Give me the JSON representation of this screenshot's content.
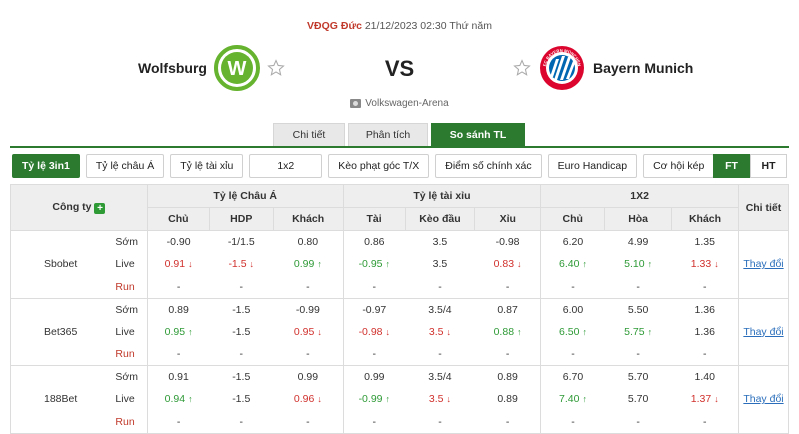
{
  "match": {
    "league": "VĐQG Đức",
    "datetime": "21/12/2023 02:30 Thứ năm",
    "home": "Wolfsburg",
    "away": "Bayern Munich",
    "vs": "VS",
    "venue": "Volkswagen-Arena",
    "home_logo_letter": "W",
    "away_logo_text": "FC BAYERN MÜNCHEN"
  },
  "tabs": [
    {
      "label": "Chi tiết",
      "active": false
    },
    {
      "label": "Phân tích",
      "active": false
    },
    {
      "label": "So sánh TL",
      "active": true
    }
  ],
  "filters": [
    {
      "label": "Tỷ lệ 3in1",
      "active": true
    },
    {
      "label": "Tỷ lệ châu Á",
      "active": false
    },
    {
      "label": "Tỷ lệ tài xỉu",
      "active": false
    },
    {
      "label": "1x2",
      "active": false
    },
    {
      "label": "Kèo phạt góc T/X",
      "active": false
    },
    {
      "label": "Điểm số chính xác",
      "active": false
    },
    {
      "label": "Euro Handicap",
      "active": false
    },
    {
      "label": "Cơ hội kép",
      "active": false
    }
  ],
  "period_toggle": [
    {
      "label": "FT",
      "active": true
    },
    {
      "label": "HT",
      "active": false
    }
  ],
  "table": {
    "company_header": "Công ty",
    "groups": [
      {
        "label": "Tỷ lệ Châu Á",
        "cols": [
          "Chủ",
          "HDP",
          "Khách"
        ]
      },
      {
        "label": "Tỷ lệ tài xỉu",
        "cols": [
          "Tài",
          "Kèo đầu",
          "Xỉu"
        ]
      },
      {
        "label": "1X2",
        "cols": [
          "Chủ",
          "Hòa",
          "Khách"
        ]
      }
    ],
    "detail_header": "Chi tiết",
    "detail_link": "Thay đổi",
    "companies": [
      {
        "name": "Sbobet",
        "rows": [
          {
            "type": "Sớm",
            "cells": [
              [
                "-0.90",
                ""
              ],
              [
                "-1/1.5",
                ""
              ],
              [
                "0.80",
                ""
              ],
              [
                "0.86",
                ""
              ],
              [
                "3.5",
                ""
              ],
              [
                "-0.98",
                ""
              ],
              [
                "6.20",
                ""
              ],
              [
                "4.99",
                ""
              ],
              [
                "1.35",
                ""
              ]
            ]
          },
          {
            "type": "Live",
            "cells": [
              [
                "0.91",
                "down"
              ],
              [
                "-1.5",
                "down"
              ],
              [
                "0.99",
                "up"
              ],
              [
                "-0.95",
                "up"
              ],
              [
                "3.5",
                ""
              ],
              [
                "0.83",
                "down"
              ],
              [
                "6.40",
                "up"
              ],
              [
                "5.10",
                "up"
              ],
              [
                "1.33",
                "down"
              ]
            ]
          },
          {
            "type": "Run",
            "cells": [
              [
                "-",
                ""
              ],
              [
                "-",
                ""
              ],
              [
                "-",
                ""
              ],
              [
                "-",
                ""
              ],
              [
                "-",
                ""
              ],
              [
                "-",
                ""
              ],
              [
                "-",
                ""
              ],
              [
                "-",
                ""
              ],
              [
                "-",
                ""
              ]
            ]
          }
        ]
      },
      {
        "name": "Bet365",
        "rows": [
          {
            "type": "Sớm",
            "cells": [
              [
                "0.89",
                ""
              ],
              [
                "-1.5",
                ""
              ],
              [
                "-0.99",
                ""
              ],
              [
                "-0.97",
                ""
              ],
              [
                "3.5/4",
                ""
              ],
              [
                "0.87",
                ""
              ],
              [
                "6.00",
                ""
              ],
              [
                "5.50",
                ""
              ],
              [
                "1.36",
                ""
              ]
            ]
          },
          {
            "type": "Live",
            "cells": [
              [
                "0.95",
                "up"
              ],
              [
                "-1.5",
                ""
              ],
              [
                "0.95",
                "down"
              ],
              [
                "-0.98",
                "down"
              ],
              [
                "3.5",
                "down"
              ],
              [
                "0.88",
                "up"
              ],
              [
                "6.50",
                "up"
              ],
              [
                "5.75",
                "up"
              ],
              [
                "1.36",
                ""
              ]
            ]
          },
          {
            "type": "Run",
            "cells": [
              [
                "-",
                ""
              ],
              [
                "-",
                ""
              ],
              [
                "-",
                ""
              ],
              [
                "-",
                ""
              ],
              [
                "-",
                ""
              ],
              [
                "-",
                ""
              ],
              [
                "-",
                ""
              ],
              [
                "-",
                ""
              ],
              [
                "-",
                ""
              ]
            ]
          }
        ]
      },
      {
        "name": "188Bet",
        "rows": [
          {
            "type": "Sớm",
            "cells": [
              [
                "0.91",
                ""
              ],
              [
                "-1.5",
                ""
              ],
              [
                "0.99",
                ""
              ],
              [
                "0.99",
                ""
              ],
              [
                "3.5/4",
                ""
              ],
              [
                "0.89",
                ""
              ],
              [
                "6.70",
                ""
              ],
              [
                "5.70",
                ""
              ],
              [
                "1.40",
                ""
              ]
            ]
          },
          {
            "type": "Live",
            "cells": [
              [
                "0.94",
                "up"
              ],
              [
                "-1.5",
                ""
              ],
              [
                "0.96",
                "down"
              ],
              [
                "-0.99",
                "up"
              ],
              [
                "3.5",
                "down"
              ],
              [
                "0.89",
                ""
              ],
              [
                "7.40",
                "up"
              ],
              [
                "5.70",
                ""
              ],
              [
                "1.37",
                "down"
              ]
            ]
          },
          {
            "type": "Run",
            "cells": [
              [
                "-",
                ""
              ],
              [
                "-",
                ""
              ],
              [
                "-",
                ""
              ],
              [
                "-",
                ""
              ],
              [
                "-",
                ""
              ],
              [
                "-",
                ""
              ],
              [
                "-",
                ""
              ],
              [
                "-",
                ""
              ],
              [
                "-",
                ""
              ]
            ]
          }
        ]
      }
    ]
  },
  "colors": {
    "accent": "#2b7a2f",
    "up": "#2e9a36",
    "down": "#d0312d",
    "link": "#2a6ebb"
  }
}
